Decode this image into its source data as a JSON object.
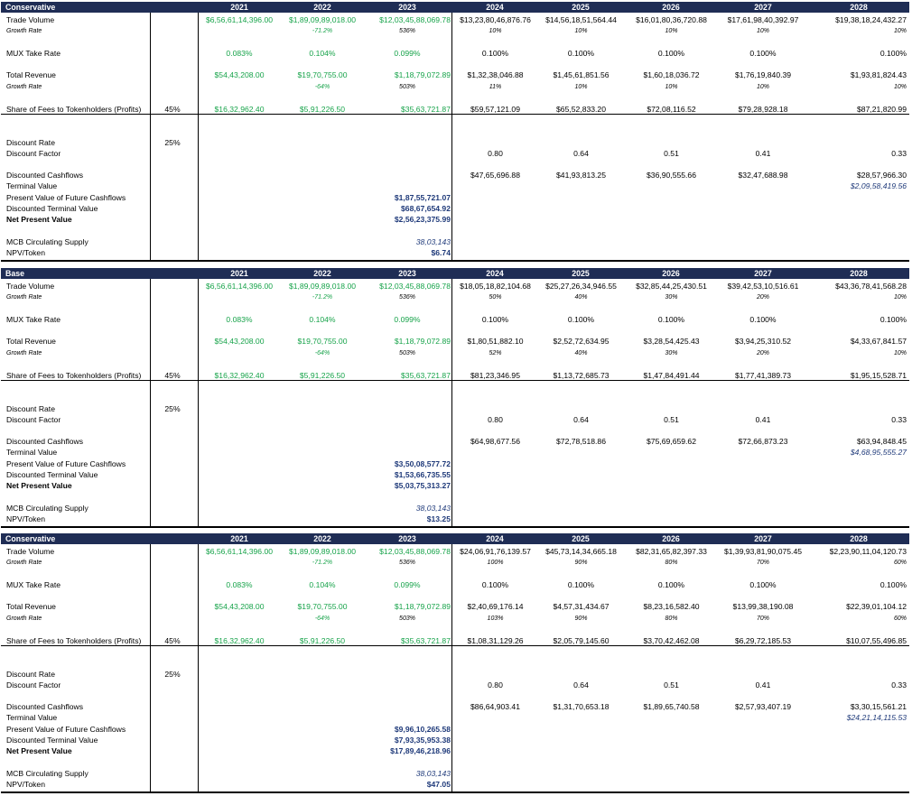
{
  "years": [
    "2021",
    "2022",
    "2023",
    "2024",
    "2025",
    "2026",
    "2027",
    "2028"
  ],
  "labels": {
    "trade_volume": "Trade Volume",
    "growth_rate": "Growth Rate",
    "take_rate": "MUX Take Rate",
    "total_revenue": "Total Revenue",
    "share_fees": "Share of Fees to Tokenholders (Profits)",
    "discount_rate": "Discount Rate",
    "discount_factor": "Discount Factor",
    "discounted_cashflows": "Discounted Cashflows",
    "terminal_value": "Terminal Value",
    "pv_future": "Present Value of Future Cashflows",
    "discounted_terminal": "Discounted Terminal Value",
    "npv": "Net Present Value",
    "supply": "MCB Circulating Supply",
    "npv_token": "NPV/Token"
  },
  "scenarios": [
    {
      "name": "Conservative",
      "share_pct": "45%",
      "discount_rate": "25%",
      "trade_volume": [
        "$6,56,61,14,396.00",
        "$1,89,09,89,018.00",
        "$12,03,45,88,069.78",
        "$13,23,80,46,876.76",
        "$14,56,18,51,564.44",
        "$16,01,80,36,720.88",
        "$17,61,98,40,392.97",
        "$19,38,18,24,432.27"
      ],
      "tv_growth": [
        "",
        "-71.2%",
        "536%",
        "10%",
        "10%",
        "10%",
        "10%",
        "10%"
      ],
      "take_rate": [
        "0.083%",
        "0.104%",
        "0.099%",
        "0.100%",
        "0.100%",
        "0.100%",
        "0.100%",
        "0.100%"
      ],
      "revenue": [
        "$54,43,208.00",
        "$19,70,755.00",
        "$1,18,79,072.89",
        "$1,32,38,046.88",
        "$1,45,61,851.56",
        "$1,60,18,036.72",
        "$1,76,19,840.39",
        "$1,93,81,824.43"
      ],
      "rev_growth": [
        "",
        "-64%",
        "503%",
        "11%",
        "10%",
        "10%",
        "10%",
        "10%"
      ],
      "share": [
        "$16,32,962.40",
        "$5,91,226.50",
        "$35,63,721.87",
        "$59,57,121.09",
        "$65,52,833.20",
        "$72,08,116.52",
        "$79,28,928.18",
        "$87,21,820.99"
      ],
      "discount_factor": [
        "",
        "",
        "",
        "0.80",
        "0.64",
        "0.51",
        "0.41",
        "0.33"
      ],
      "discounted_cf": [
        "",
        "",
        "",
        "$47,65,696.88",
        "$41,93,813.25",
        "$36,90,555.66",
        "$32,47,688.98",
        "$28,57,966.30"
      ],
      "terminal_value": "$2,09,58,419.56",
      "pv_future": "$1,87,55,721.07",
      "discounted_terminal": "$68,67,654.92",
      "npv": "$2,56,23,375.99",
      "supply": "38,03,143",
      "npv_token": "$6.74"
    },
    {
      "name": "Base",
      "share_pct": "45%",
      "discount_rate": "25%",
      "trade_volume": [
        "$6,56,61,14,396.00",
        "$1,89,09,89,018.00",
        "$12,03,45,88,069.78",
        "$18,05,18,82,104.68",
        "$25,27,26,34,946.55",
        "$32,85,44,25,430.51",
        "$39,42,53,10,516.61",
        "$43,36,78,41,568.28"
      ],
      "tv_growth": [
        "",
        "-71.2%",
        "536%",
        "50%",
        "40%",
        "30%",
        "20%",
        "10%"
      ],
      "take_rate": [
        "0.083%",
        "0.104%",
        "0.099%",
        "0.100%",
        "0.100%",
        "0.100%",
        "0.100%",
        "0.100%"
      ],
      "revenue": [
        "$54,43,208.00",
        "$19,70,755.00",
        "$1,18,79,072.89",
        "$1,80,51,882.10",
        "$2,52,72,634.95",
        "$3,28,54,425.43",
        "$3,94,25,310.52",
        "$4,33,67,841.57"
      ],
      "rev_growth": [
        "",
        "-64%",
        "503%",
        "52%",
        "40%",
        "30%",
        "20%",
        "10%"
      ],
      "share": [
        "$16,32,962.40",
        "$5,91,226.50",
        "$35,63,721.87",
        "$81,23,346.95",
        "$1,13,72,685.73",
        "$1,47,84,491.44",
        "$1,77,41,389.73",
        "$1,95,15,528.71"
      ],
      "discount_factor": [
        "",
        "",
        "",
        "0.80",
        "0.64",
        "0.51",
        "0.41",
        "0.33"
      ],
      "discounted_cf": [
        "",
        "",
        "",
        "$64,98,677.56",
        "$72,78,518.86",
        "$75,69,659.62",
        "$72,66,873.23",
        "$63,94,848.45"
      ],
      "terminal_value": "$4,68,95,555.27",
      "pv_future": "$3,50,08,577.72",
      "discounted_terminal": "$1,53,66,735.55",
      "npv": "$5,03,75,313.27",
      "supply": "38,03,143",
      "npv_token": "$13.25"
    },
    {
      "name": "Conservative",
      "share_pct": "45%",
      "discount_rate": "25%",
      "trade_volume": [
        "$6,56,61,14,396.00",
        "$1,89,09,89,018.00",
        "$12,03,45,88,069.78",
        "$24,06,91,76,139.57",
        "$45,73,14,34,665.18",
        "$82,31,65,82,397.33",
        "$1,39,93,81,90,075.45",
        "$2,23,90,11,04,120.73"
      ],
      "tv_growth": [
        "",
        "-71.2%",
        "536%",
        "100%",
        "90%",
        "80%",
        "70%",
        "60%"
      ],
      "take_rate": [
        "0.083%",
        "0.104%",
        "0.099%",
        "0.100%",
        "0.100%",
        "0.100%",
        "0.100%",
        "0.100%"
      ],
      "revenue": [
        "$54,43,208.00",
        "$19,70,755.00",
        "$1,18,79,072.89",
        "$2,40,69,176.14",
        "$4,57,31,434.67",
        "$8,23,16,582.40",
        "$13,99,38,190.08",
        "$22,39,01,104.12"
      ],
      "rev_growth": [
        "",
        "-64%",
        "503%",
        "103%",
        "90%",
        "80%",
        "70%",
        "60%"
      ],
      "share": [
        "$16,32,962.40",
        "$5,91,226.50",
        "$35,63,721.87",
        "$1,08,31,129.26",
        "$2,05,79,145.60",
        "$3,70,42,462.08",
        "$6,29,72,185.53",
        "$10,07,55,496.85"
      ],
      "discount_factor": [
        "",
        "",
        "",
        "0.80",
        "0.64",
        "0.51",
        "0.41",
        "0.33"
      ],
      "discounted_cf": [
        "",
        "",
        "",
        "$86,64,903.41",
        "$1,31,70,653.18",
        "$1,89,65,740.58",
        "$2,57,93,407.19",
        "$3,30,15,561.21"
      ],
      "terminal_value": "$24,21,14,115.53",
      "pv_future": "$9,96,10,265.58",
      "discounted_terminal": "$7,93,35,953.38",
      "npv": "$17,89,46,218.96",
      "supply": "38,03,143",
      "npv_token": "$47.05"
    }
  ]
}
